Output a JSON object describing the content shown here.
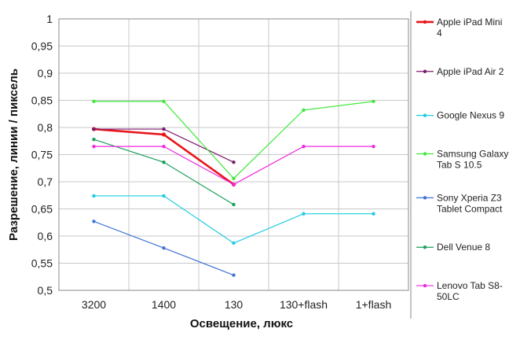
{
  "chart_data": {
    "type": "line",
    "categories": [
      "3200",
      "1400",
      "130",
      "130+flash",
      "1+flash"
    ],
    "xlabel": "Освещение,  люкс",
    "ylabel": "Разрешение,  линии / пиксель",
    "ylim": [
      0.5,
      1
    ],
    "yticks": [
      "0,5",
      "0,55",
      "0,6",
      "0,65",
      "0,7",
      "0,75",
      "0,8",
      "0,85",
      "0,9",
      "0,95",
      "1"
    ],
    "grid": true,
    "legend_position": "right",
    "series": [
      {
        "name": "Apple iPad Mini 4",
        "legend_lines": [
          "Apple iPad Mini",
          "4"
        ],
        "color": "#e8141b",
        "bold": true,
        "values": [
          0.797,
          0.787,
          0.695,
          null,
          null
        ]
      },
      {
        "name": "Apple iPad Air 2",
        "legend_lines": [
          "Apple iPad Air 2"
        ],
        "color": "#7b1a6e",
        "bold": false,
        "values": [
          0.797,
          0.797,
          0.736,
          null,
          null
        ]
      },
      {
        "name": "Google Nexus 9",
        "legend_lines": [
          "Google Nexus 9"
        ],
        "color": "#1ecde0",
        "bold": false,
        "values": [
          0.674,
          0.674,
          0.587,
          0.641,
          0.641
        ]
      },
      {
        "name": "Samsung Galaxy Tab S 10.5",
        "legend_lines": [
          "Samsung Galaxy",
          "Tab S 10.5"
        ],
        "color": "#3ee83a",
        "bold": false,
        "values": [
          0.848,
          0.848,
          0.706,
          0.832,
          0.848
        ]
      },
      {
        "name": "Sony Xperia Z3 Tablet Compact",
        "legend_lines": [
          "Sony Xperia Z3",
          "Tablet Compact"
        ],
        "color": "#4174d6",
        "bold": false,
        "values": [
          0.627,
          0.578,
          0.528,
          null,
          null
        ]
      },
      {
        "name": "Dell Venue 8",
        "legend_lines": [
          "Dell Venue 8"
        ],
        "color": "#1aa05a",
        "bold": false,
        "values": [
          0.778,
          0.736,
          0.658,
          null,
          null
        ]
      },
      {
        "name": "Lenovo Tab S8-50LC",
        "legend_lines": [
          "Lenovo Tab S8-",
          "50LC"
        ],
        "color": "#f028e0",
        "bold": false,
        "values": [
          0.765,
          0.765,
          0.695,
          0.765,
          0.765
        ]
      }
    ]
  }
}
